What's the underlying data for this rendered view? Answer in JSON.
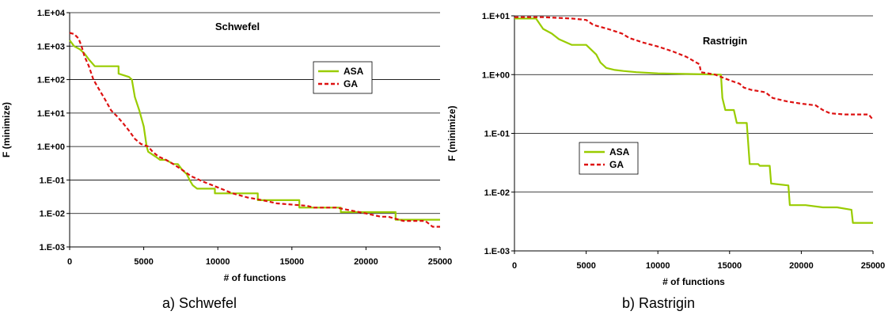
{
  "chart_data": [
    {
      "type": "line",
      "title": "Schwefel",
      "caption": "a) Schwefel",
      "xlabel": "# of functions",
      "ylabel": "F (minimize)",
      "xlim": [
        0,
        25000
      ],
      "xticks": [
        0,
        5000,
        10000,
        15000,
        20000,
        25000
      ],
      "xtick_labels": [
        "0",
        "5000",
        "10000",
        "15000",
        "20000",
        "25000"
      ],
      "ylog": true,
      "ylim": [
        0.001,
        10000
      ],
      "yticks": [
        10000,
        1000,
        100,
        10,
        1,
        0.1,
        0.01,
        0.001
      ],
      "ytick_labels": [
        "1.E+04",
        "1.E+03",
        "1.E+02",
        "1.E+01",
        "1.E+00",
        "1.E-01",
        "1.E-02",
        "1.E-03"
      ],
      "grid": true,
      "legend_position": "center-right",
      "series": [
        {
          "name": "ASA",
          "color": "#99cc00",
          "dash": "solid",
          "x": [
            0,
            300,
            700,
            1000,
            1300,
            1700,
            3300,
            3300,
            4000,
            4200,
            4400,
            4700,
            5000,
            5200,
            5300,
            5800,
            6100,
            6500,
            7000,
            7300,
            7600,
            7900,
            8100,
            8300,
            8600,
            9800,
            9800,
            12700,
            12700,
            15500,
            15500,
            18300,
            18300,
            22000,
            22000,
            25000
          ],
          "y": [
            1500,
            1000,
            800,
            600,
            400,
            250,
            250,
            150,
            120,
            100,
            30,
            12,
            4,
            1,
            0.7,
            0.5,
            0.4,
            0.4,
            0.3,
            0.3,
            0.2,
            0.15,
            0.1,
            0.07,
            0.055,
            0.055,
            0.04,
            0.04,
            0.025,
            0.025,
            0.015,
            0.015,
            0.011,
            0.011,
            0.0065,
            0.0065
          ]
        },
        {
          "name": "GA",
          "color": "#dd1111",
          "dash": "dashed",
          "x": [
            0,
            300,
            600,
            800,
            1000,
            1300,
            1600,
            2000,
            2400,
            2800,
            3200,
            3600,
            4000,
            4400,
            4800,
            5300,
            5600,
            6000,
            6500,
            7000,
            7600,
            8200,
            9000,
            10000,
            11000,
            12000,
            13000,
            14000,
            16000,
            16500,
            18000,
            20000,
            21000,
            21500,
            22500,
            24000,
            24500,
            25000
          ],
          "y": [
            2500,
            2300,
            1700,
            1000,
            500,
            250,
            100,
            50,
            25,
            12,
            8,
            5,
            3,
            1.7,
            1.2,
            1.0,
            0.7,
            0.5,
            0.4,
            0.3,
            0.2,
            0.13,
            0.09,
            0.06,
            0.04,
            0.03,
            0.025,
            0.02,
            0.017,
            0.015,
            0.015,
            0.01,
            0.008,
            0.008,
            0.006,
            0.006,
            0.004,
            0.004
          ]
        }
      ]
    },
    {
      "type": "line",
      "title": "Rastrigin",
      "caption": "b) Rastrigin",
      "xlabel": "# of functions",
      "ylabel": "F (minimize)",
      "xlim": [
        0,
        25000
      ],
      "xticks": [
        0,
        5000,
        10000,
        15000,
        20000,
        25000
      ],
      "xtick_labels": [
        "0",
        "5000",
        "10000",
        "15000",
        "20000",
        "25000"
      ],
      "ylog": true,
      "ylim": [
        0.001,
        10
      ],
      "yticks": [
        10,
        1,
        0.1,
        0.01,
        0.001
      ],
      "ytick_labels": [
        "1.E+01",
        "1.E+00",
        "1.E-01",
        "1.E-02",
        "1.E-03"
      ],
      "grid": true,
      "legend_position": "center-left",
      "series": [
        {
          "name": "ASA",
          "color": "#99cc00",
          "dash": "solid",
          "x": [
            0,
            1500,
            2000,
            2600,
            3100,
            4000,
            5000,
            5700,
            6000,
            6400,
            7000,
            7600,
            8500,
            10000,
            14300,
            14400,
            14500,
            14700,
            15300,
            15500,
            16200,
            16400,
            17000,
            17100,
            17800,
            17900,
            19100,
            19200,
            20300,
            21500,
            22500,
            23500,
            23600,
            24000,
            25000
          ],
          "y": [
            9,
            9,
            6,
            5,
            4,
            3.2,
            3.2,
            2.2,
            1.6,
            1.3,
            1.2,
            1.15,
            1.1,
            1.05,
            1.0,
            1.0,
            0.4,
            0.25,
            0.25,
            0.15,
            0.15,
            0.03,
            0.03,
            0.028,
            0.028,
            0.014,
            0.013,
            0.006,
            0.006,
            0.0055,
            0.0055,
            0.005,
            0.003,
            0.003,
            0.003
          ]
        },
        {
          "name": "GA",
          "color": "#dd1111",
          "dash": "dashed",
          "x": [
            0,
            2000,
            4000,
            5000,
            5500,
            6500,
            7500,
            8000,
            9000,
            10000,
            11000,
            12000,
            12900,
            13000,
            14000,
            15000,
            15700,
            16000,
            16500,
            17500,
            18000,
            19000,
            20000,
            21000,
            21500,
            22000,
            23000,
            24000,
            24700,
            25000
          ],
          "y": [
            9.5,
            9.5,
            9,
            8.5,
            7,
            6,
            5,
            4.2,
            3.5,
            3.0,
            2.5,
            2.0,
            1.5,
            1.1,
            1.0,
            0.8,
            0.7,
            0.6,
            0.55,
            0.5,
            0.4,
            0.35,
            0.32,
            0.3,
            0.25,
            0.22,
            0.21,
            0.21,
            0.21,
            0.17
          ]
        }
      ]
    }
  ]
}
